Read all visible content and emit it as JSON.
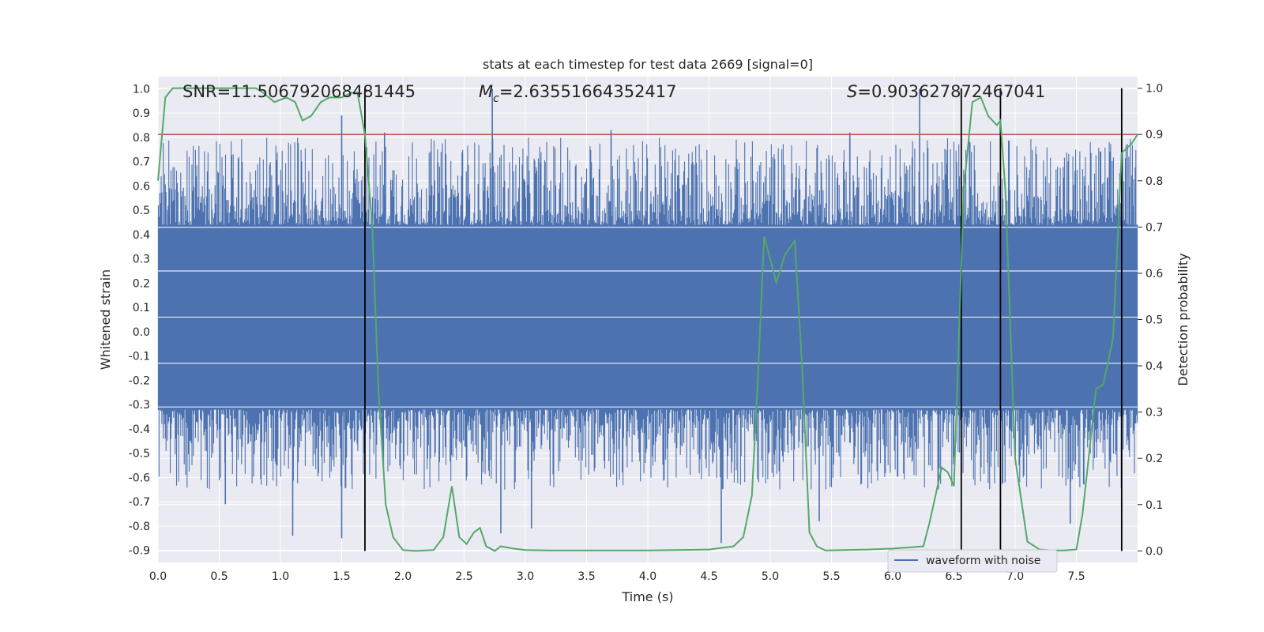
{
  "chart_data": {
    "type": "line",
    "title": "stats at each timestep for test data 2669 [signal=0]",
    "xlabel": "Time (s)",
    "ylabel": "Whitened strain",
    "y2label": "Detection probability",
    "xlim": [
      0.0,
      8.0
    ],
    "ylim": [
      -0.95,
      1.05
    ],
    "y2lim": [
      -0.025,
      1.025
    ],
    "xticks": [
      "0.0",
      "0.5",
      "1.0",
      "1.5",
      "2.0",
      "2.5",
      "3.0",
      "3.5",
      "4.0",
      "4.5",
      "5.0",
      "5.5",
      "6.0",
      "6.5",
      "7.0",
      "7.5"
    ],
    "yticks": [
      "1.0",
      "0.9",
      "0.8",
      "0.7",
      "0.6",
      "0.5",
      "0.4",
      "0.3",
      "0.2",
      "0.1",
      "0.0",
      "-0.1",
      "-0.2",
      "-0.3",
      "-0.4",
      "-0.5",
      "-0.6",
      "-0.7",
      "-0.8",
      "-0.9"
    ],
    "y2ticks": [
      "1.0",
      "0.9",
      "0.8",
      "0.7",
      "0.6",
      "0.5",
      "0.4",
      "0.3",
      "0.2",
      "0.1",
      "0.0"
    ],
    "annotations": {
      "snr_label": "SNR=11.506792068481445",
      "mc_symbol": "M",
      "mc_sub": "c",
      "mc_value": "=2.63551664352417",
      "s_symbol": "S",
      "s_value": "=0.903627872467041"
    },
    "legend": {
      "label": "waveform with noise",
      "placement": "lower-right"
    },
    "threshold_line": {
      "y2": 0.9,
      "color": "#c44e52"
    },
    "event_markers_x": [
      1.69,
      6.56,
      6.88,
      7.87
    ],
    "event_marker_y2_range": [
      0.0,
      1.0
    ],
    "waveform": {
      "name": "waveform with noise",
      "color": "#4c72b0",
      "core_amplitude": [
        -0.32,
        0.44
      ],
      "spikes": [
        {
          "x": 1.5,
          "y": 0.89
        },
        {
          "x": 2.73,
          "y": 1.0
        },
        {
          "x": 6.22,
          "y": 1.0
        },
        {
          "x": 1.85,
          "y": 0.82
        },
        {
          "x": 3.7,
          "y": 0.83
        },
        {
          "x": 5.65,
          "y": 0.82
        },
        {
          "x": 0.55,
          "y": -0.71
        },
        {
          "x": 1.1,
          "y": -0.84
        },
        {
          "x": 1.5,
          "y": -0.85
        },
        {
          "x": 2.8,
          "y": -0.83
        },
        {
          "x": 3.05,
          "y": -0.81
        },
        {
          "x": 4.6,
          "y": -0.87
        },
        {
          "x": 5.4,
          "y": -0.78
        },
        {
          "x": 7.45,
          "y": -0.79
        }
      ]
    },
    "detection_probability": {
      "color": "#55a868",
      "x": [
        0.0,
        0.06,
        0.12,
        0.2,
        0.3,
        0.4,
        0.5,
        0.6,
        0.7,
        0.8,
        0.86,
        0.95,
        1.05,
        1.12,
        1.18,
        1.25,
        1.33,
        1.4,
        1.5,
        1.58,
        1.63,
        1.69,
        1.75,
        1.8,
        1.86,
        1.92,
        2.0,
        2.1,
        2.25,
        2.33,
        2.4,
        2.46,
        2.52,
        2.58,
        2.63,
        2.68,
        2.75,
        2.8,
        2.9,
        3.0,
        3.2,
        3.5,
        4.0,
        4.5,
        4.7,
        4.78,
        4.85,
        4.9,
        4.95,
        5.0,
        5.05,
        5.12,
        5.2,
        5.26,
        5.32,
        5.38,
        5.45,
        5.6,
        5.8,
        6.0,
        6.15,
        6.25,
        6.3,
        6.4,
        6.45,
        6.5,
        6.58,
        6.65,
        6.72,
        6.78,
        6.85,
        6.88,
        6.92,
        7.0,
        7.1,
        7.2,
        7.3,
        7.4,
        7.5,
        7.55,
        7.6,
        7.66,
        7.72,
        7.8,
        7.87,
        7.95,
        8.0
      ],
      "y": [
        0.8,
        0.98,
        1.0,
        1.0,
        1.0,
        1.0,
        1.0,
        1.0,
        1.0,
        1.0,
        0.99,
        0.97,
        0.98,
        0.97,
        0.93,
        0.94,
        0.97,
        0.98,
        0.98,
        0.99,
        0.99,
        0.9,
        0.7,
        0.35,
        0.1,
        0.03,
        0.002,
        0.0,
        0.002,
        0.03,
        0.14,
        0.03,
        0.015,
        0.04,
        0.05,
        0.01,
        0.0,
        0.01,
        0.005,
        0.002,
        0.001,
        0.001,
        0.001,
        0.003,
        0.01,
        0.03,
        0.12,
        0.38,
        0.68,
        0.63,
        0.58,
        0.64,
        0.67,
        0.4,
        0.04,
        0.01,
        0.001,
        0.002,
        0.003,
        0.005,
        0.008,
        0.01,
        0.06,
        0.18,
        0.17,
        0.14,
        0.78,
        0.97,
        0.98,
        0.94,
        0.92,
        0.93,
        0.78,
        0.2,
        0.02,
        0.003,
        0.001,
        0.001,
        0.003,
        0.08,
        0.2,
        0.35,
        0.36,
        0.46,
        0.86,
        0.88,
        0.9
      ]
    }
  }
}
